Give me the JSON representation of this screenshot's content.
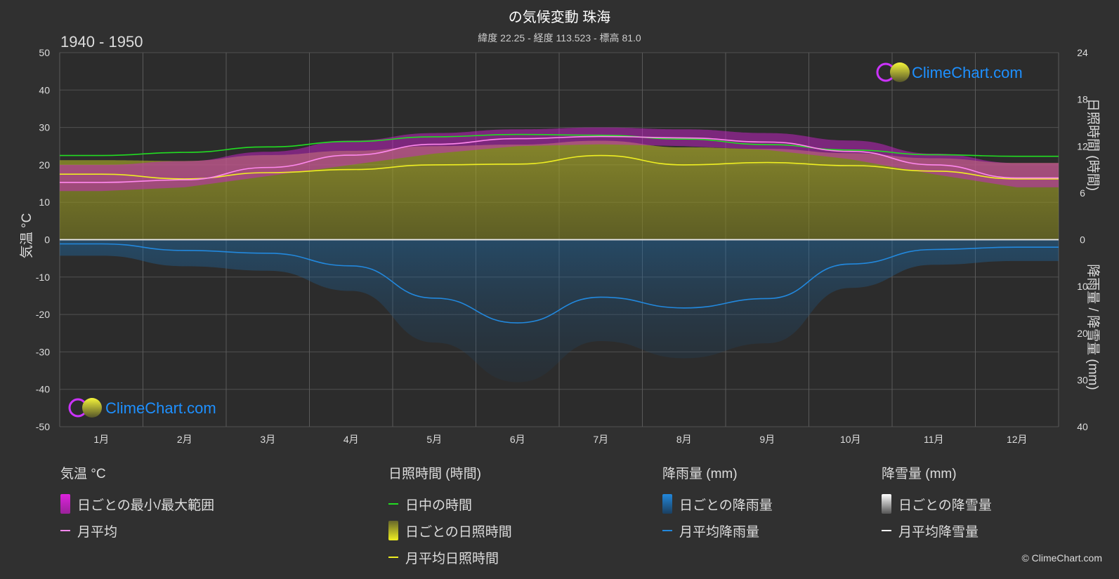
{
  "title": "の気候変動 珠海",
  "subtitle": "緯度 22.25 - 経度 113.523 - 標高 81.0",
  "period": "1940 - 1950",
  "logo_text": "ClimeChart.com",
  "copyright": "© ClimeChart.com",
  "colors": {
    "background": "#303030",
    "daylight": "#22dd22",
    "sunshine": "#eeee22",
    "temp_mean": "#ff88ee",
    "temp_range": "#dd22dd",
    "rain": "#2288dd",
    "snow": "#ffffff",
    "logo": "#1e90ff"
  },
  "chart_data": {
    "type": "line",
    "categories": [
      "1月",
      "2月",
      "3月",
      "4月",
      "5月",
      "6月",
      "7月",
      "8月",
      "9月",
      "10月",
      "11月",
      "12月"
    ],
    "axes": {
      "left": {
        "label": "気温 °C",
        "min": -50,
        "max": 50,
        "ticks": [
          50,
          40,
          30,
          20,
          10,
          0,
          -10,
          -20,
          -30,
          -40,
          -50
        ]
      },
      "right_top": {
        "label": "日照時間 (時間)",
        "min": 0,
        "max": 24,
        "ticks": [
          24,
          18,
          12,
          6,
          0
        ]
      },
      "right_bottom": {
        "label": "降雨量 / 降雪量 (mm)",
        "min": 0,
        "max": 40,
        "ticks": [
          10,
          20,
          30,
          40
        ]
      }
    },
    "grid": true,
    "series": [
      {
        "name": "日中の時間",
        "axis": "sunshine_hours",
        "values": [
          10.8,
          11.2,
          11.9,
          12.6,
          13.2,
          13.5,
          13.4,
          12.9,
          12.2,
          11.5,
          10.9,
          10.7
        ]
      },
      {
        "name": "月平均日照時間",
        "axis": "sunshine_hours",
        "values": [
          8.4,
          7.8,
          8.6,
          9.0,
          9.6,
          9.7,
          10.8,
          9.6,
          9.9,
          9.5,
          8.8,
          7.8
        ]
      },
      {
        "name": "月平均",
        "axis": "temperature_c",
        "values": [
          15.3,
          16.0,
          19.3,
          22.6,
          25.5,
          27.0,
          27.6,
          27.2,
          26.1,
          23.6,
          20.0,
          16.5
        ]
      },
      {
        "name": "月平均降雨量",
        "axis": "precipitation_mm",
        "values": [
          0.9,
          2.3,
          2.9,
          5.6,
          12.5,
          17.8,
          12.3,
          14.6,
          12.6,
          5.2,
          2.1,
          1.6
        ]
      },
      {
        "name": "月平均降雪量",
        "axis": "precipitation_mm",
        "values": [
          0,
          0,
          0,
          0,
          0,
          0,
          0,
          0,
          0,
          0,
          0,
          0
        ]
      }
    ],
    "temp_range": {
      "name": "日ごとの最小/最大範囲",
      "min": [
        13,
        14,
        17,
        20,
        23,
        25,
        25.5,
        25,
        24,
        21.5,
        17.5,
        14
      ],
      "max": [
        20,
        21,
        23.5,
        26.5,
        28.5,
        29.5,
        30,
        29.5,
        28.5,
        26.5,
        23,
        20.5
      ]
    }
  },
  "legend": {
    "temperature": {
      "title": "気温 °C",
      "items": [
        "日ごとの最小/最大範囲",
        "月平均"
      ]
    },
    "sunshine": {
      "title": "日照時間 (時間)",
      "items": [
        "日中の時間",
        "日ごとの日照時間",
        "月平均日照時間"
      ]
    },
    "rain": {
      "title": "降雨量 (mm)",
      "items": [
        "日ごとの降雨量",
        "月平均降雨量"
      ]
    },
    "snow": {
      "title": "降雪量 (mm)",
      "items": [
        "日ごとの降雪量",
        "月平均降雪量"
      ]
    }
  }
}
